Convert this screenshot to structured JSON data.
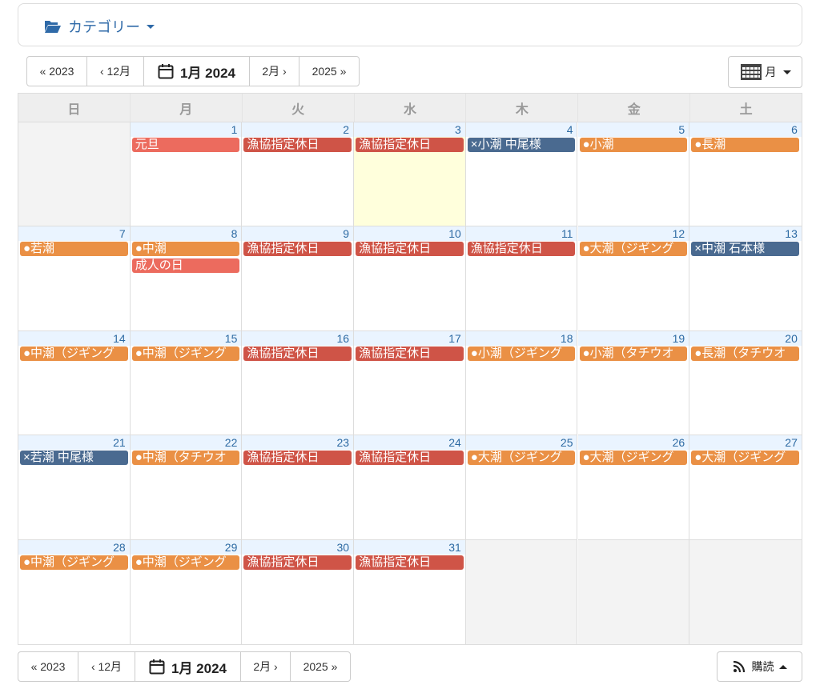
{
  "category": {
    "label": "カテゴリー"
  },
  "nav": {
    "prev_year": "« 2023",
    "prev_month": "‹ 12月",
    "current": "1月 2024",
    "next_month": "2月 ›",
    "next_year": "2025 »"
  },
  "view": {
    "label": "月"
  },
  "subscribe": {
    "label": "購読"
  },
  "weekdays": [
    "日",
    "月",
    "火",
    "水",
    "木",
    "金",
    "土"
  ],
  "colors": {
    "holiday": "#ec6b5e",
    "closed": "#cf5447",
    "tide": "#ea9045",
    "booked": "#4a6a90"
  },
  "weeks": [
    [
      {
        "day": "",
        "events": []
      },
      {
        "day": "1",
        "events": [
          {
            "text": "元旦",
            "type": "holiday"
          }
        ]
      },
      {
        "day": "2",
        "events": [
          {
            "text": "漁協指定休日",
            "type": "closed"
          }
        ]
      },
      {
        "day": "3",
        "today": true,
        "events": [
          {
            "text": "漁協指定休日",
            "type": "closed"
          }
        ]
      },
      {
        "day": "4",
        "events": [
          {
            "text": "×小潮 中尾様",
            "type": "booked"
          }
        ]
      },
      {
        "day": "5",
        "events": [
          {
            "text": "●小潮",
            "type": "tide"
          }
        ]
      },
      {
        "day": "6",
        "events": [
          {
            "text": "●長潮",
            "type": "tide"
          }
        ]
      }
    ],
    [
      {
        "day": "7",
        "events": [
          {
            "text": "●若潮",
            "type": "tide"
          }
        ]
      },
      {
        "day": "8",
        "events": [
          {
            "text": "●中潮",
            "type": "tide"
          },
          {
            "text": "成人の日",
            "type": "holiday"
          }
        ]
      },
      {
        "day": "9",
        "events": [
          {
            "text": "漁協指定休日",
            "type": "closed"
          }
        ]
      },
      {
        "day": "10",
        "events": [
          {
            "text": "漁協指定休日",
            "type": "closed"
          }
        ]
      },
      {
        "day": "11",
        "events": [
          {
            "text": "漁協指定休日",
            "type": "closed"
          }
        ]
      },
      {
        "day": "12",
        "events": [
          {
            "text": "●大潮（ジギング",
            "type": "tide"
          }
        ]
      },
      {
        "day": "13",
        "events": [
          {
            "text": "×中潮 石本様",
            "type": "booked"
          }
        ]
      }
    ],
    [
      {
        "day": "14",
        "events": [
          {
            "text": "●中潮（ジギング",
            "type": "tide"
          }
        ]
      },
      {
        "day": "15",
        "events": [
          {
            "text": "●中潮（ジギング",
            "type": "tide"
          }
        ]
      },
      {
        "day": "16",
        "events": [
          {
            "text": "漁協指定休日",
            "type": "closed"
          }
        ]
      },
      {
        "day": "17",
        "events": [
          {
            "text": "漁協指定休日",
            "type": "closed"
          }
        ]
      },
      {
        "day": "18",
        "events": [
          {
            "text": "●小潮（ジギング",
            "type": "tide"
          }
        ]
      },
      {
        "day": "19",
        "events": [
          {
            "text": "●小潮（タチウオ",
            "type": "tide"
          }
        ]
      },
      {
        "day": "20",
        "events": [
          {
            "text": "●長潮（タチウオ",
            "type": "tide"
          }
        ]
      }
    ],
    [
      {
        "day": "21",
        "events": [
          {
            "text": "×若潮 中尾様",
            "type": "booked"
          }
        ]
      },
      {
        "day": "22",
        "events": [
          {
            "text": "●中潮（タチウオ",
            "type": "tide"
          }
        ]
      },
      {
        "day": "23",
        "events": [
          {
            "text": "漁協指定休日",
            "type": "closed"
          }
        ]
      },
      {
        "day": "24",
        "events": [
          {
            "text": "漁協指定休日",
            "type": "closed"
          }
        ]
      },
      {
        "day": "25",
        "events": [
          {
            "text": "●大潮（ジギング",
            "type": "tide"
          }
        ]
      },
      {
        "day": "26",
        "events": [
          {
            "text": "●大潮（ジギング",
            "type": "tide"
          }
        ]
      },
      {
        "day": "27",
        "events": [
          {
            "text": "●大潮（ジギング",
            "type": "tide"
          }
        ]
      }
    ],
    [
      {
        "day": "28",
        "events": [
          {
            "text": "●中潮（ジギング",
            "type": "tide"
          }
        ]
      },
      {
        "day": "29",
        "events": [
          {
            "text": "●中潮（ジギング",
            "type": "tide"
          }
        ]
      },
      {
        "day": "30",
        "events": [
          {
            "text": "漁協指定休日",
            "type": "closed"
          }
        ]
      },
      {
        "day": "31",
        "events": [
          {
            "text": "漁協指定休日",
            "type": "closed"
          }
        ]
      },
      {
        "day": "",
        "events": []
      },
      {
        "day": "",
        "events": []
      },
      {
        "day": "",
        "events": []
      }
    ]
  ]
}
